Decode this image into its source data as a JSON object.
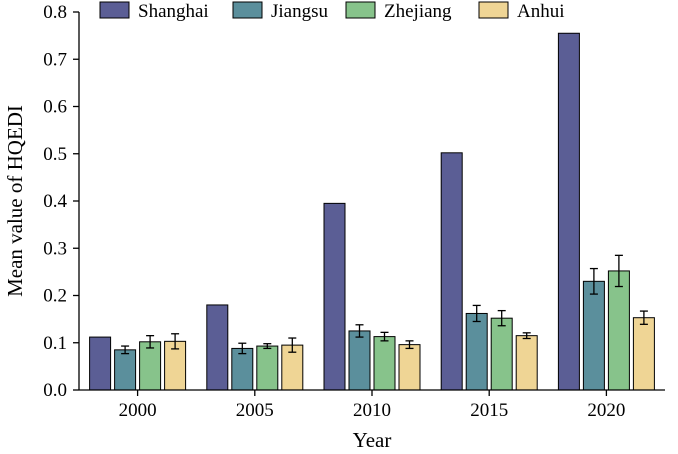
{
  "chart_data": {
    "type": "bar",
    "categories": [
      "2000",
      "2005",
      "2010",
      "2015",
      "2020"
    ],
    "series": [
      {
        "name": "Shanghai",
        "color": "#5b5e95",
        "values": [
          0.112,
          0.18,
          0.395,
          0.502,
          0.755
        ],
        "errors": [
          null,
          null,
          null,
          null,
          null
        ]
      },
      {
        "name": "Jiangsu",
        "color": "#5b8f9c",
        "values": [
          0.085,
          0.088,
          0.125,
          0.162,
          0.23
        ],
        "errors": [
          0.008,
          0.011,
          0.013,
          0.017,
          0.027
        ]
      },
      {
        "name": "Zhejiang",
        "color": "#87c38b",
        "values": [
          0.102,
          0.093,
          0.113,
          0.152,
          0.252
        ],
        "errors": [
          0.013,
          0.005,
          0.009,
          0.016,
          0.033
        ]
      },
      {
        "name": "Anhui",
        "color": "#efd595",
        "values": [
          0.103,
          0.095,
          0.096,
          0.115,
          0.153
        ],
        "errors": [
          0.016,
          0.015,
          0.008,
          0.006,
          0.014
        ]
      }
    ],
    "xlabel": "Year",
    "ylabel": "Mean value of HQEDI",
    "ylim": [
      0,
      0.8
    ],
    "yticks": [
      "0.0",
      "0.1",
      "0.2",
      "0.3",
      "0.4",
      "0.5",
      "0.6",
      "0.7",
      "0.8"
    ],
    "legend_position": "top",
    "grid": false
  }
}
